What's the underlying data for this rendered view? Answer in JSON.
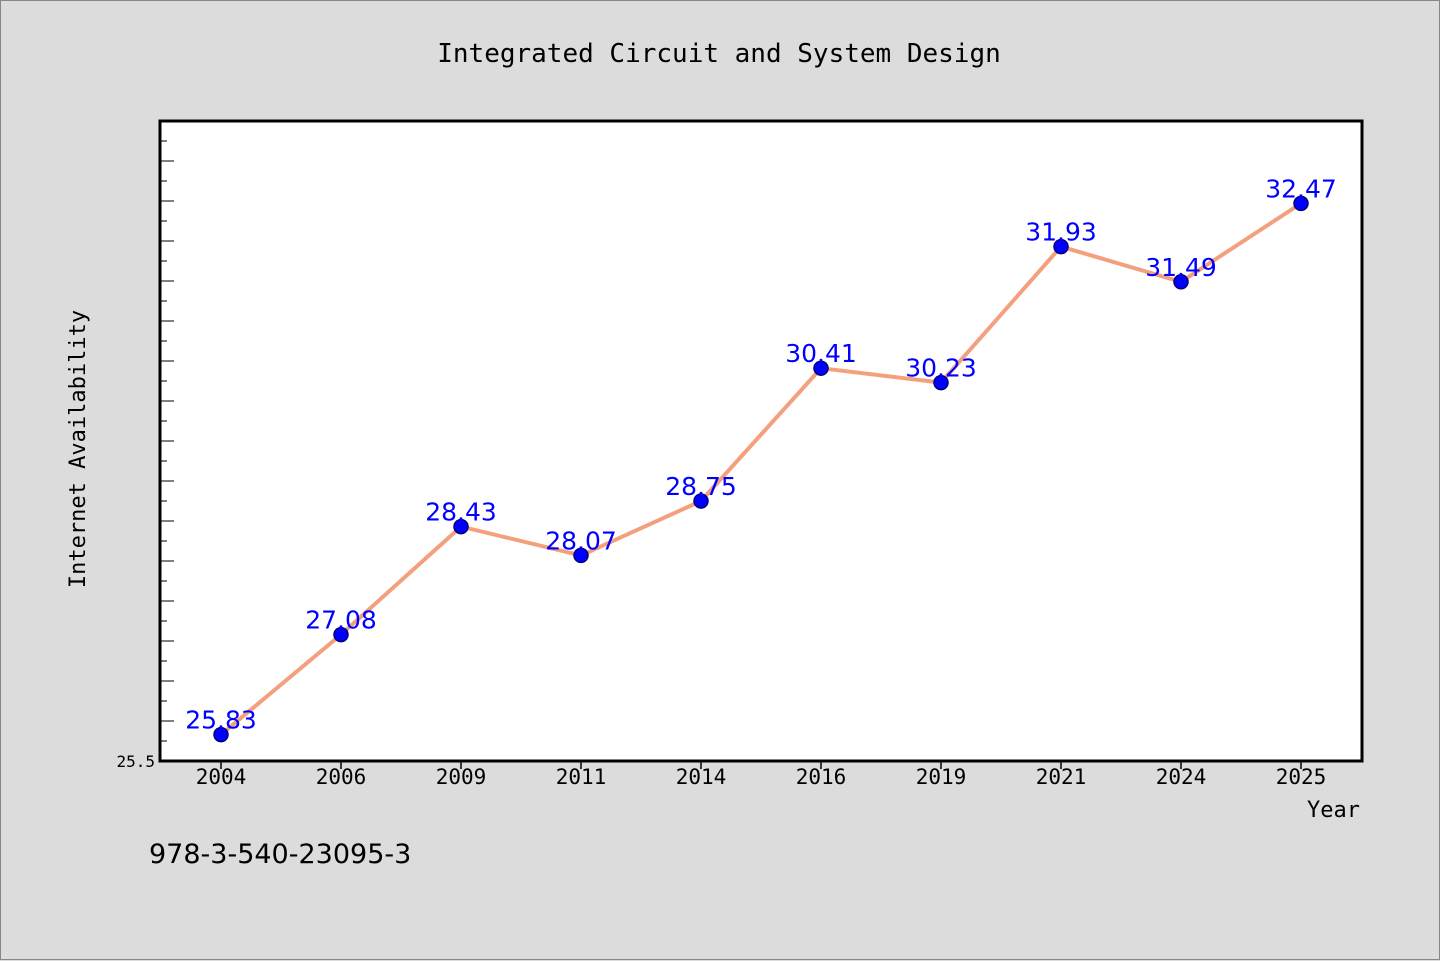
{
  "chart_data": {
    "type": "line",
    "title": "Integrated Circuit and System Design",
    "xlabel": "Year",
    "ylabel": "Internet Availability",
    "categories": [
      "2004",
      "2006",
      "2009",
      "2011",
      "2014",
      "2016",
      "2019",
      "2021",
      "2024",
      "2025"
    ],
    "series": [
      {
        "values": [
          25.83,
          27.08,
          28.43,
          28.07,
          28.75,
          30.41,
          30.23,
          31.93,
          31.49,
          32.47
        ]
      }
    ],
    "y_tick_labels": [
      "25.5"
    ],
    "ylim": [
      25.5,
      33.5
    ],
    "grid": false,
    "legend": "none",
    "footer_text": "978-3-540-23095-3",
    "colors": {
      "background": "#dcdcdc",
      "plot_background": "#ffffff",
      "line": "#f4a07e",
      "marker": "#0000ff",
      "data_label": "#0000ff"
    }
  }
}
